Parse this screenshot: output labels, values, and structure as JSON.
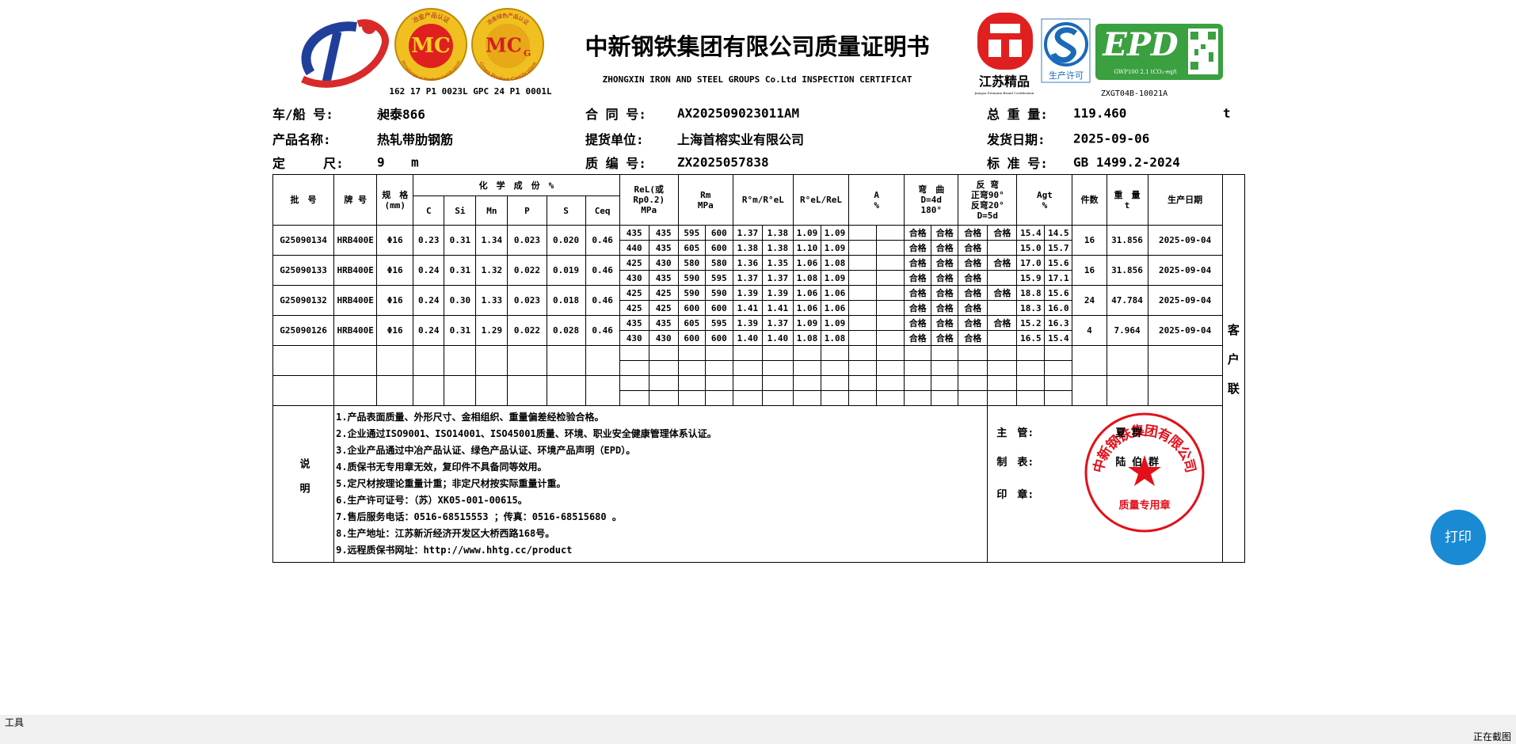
{
  "header": {
    "title": "中新钢铁集团有限公司质量证明书",
    "subtitle": "ZHONGXIN IRON AND STEEL  GROUPS Co.Ltd INSPECTION CERTIFICAT",
    "cert_codes": "162 17 P1 0023L  GPC 24 P1 0001L",
    "doc_code": "ZXGT04B-10021A",
    "logos": {
      "mc": "MC",
      "mc_ring_top": "冶金产品认证",
      "mc_ring_bottom": "Metallurgical Product Certification",
      "mcg": "MC",
      "mcg_sub": "G",
      "mcg_ring_top": "冶金绿色产品认证",
      "mcg_ring_bottom": "Green Product Certification",
      "jiangsu": "江苏精品",
      "jiangsu_en": "Jiangsu Premium Brand Certification",
      "license": "生产许可",
      "epd": "EPD",
      "epd_note": "GWP100 2.1 tCO₂-eq/t"
    }
  },
  "info": [
    {
      "label": "车/船 号:",
      "value": "昶泰866"
    },
    {
      "label": "合 同 号:",
      "value": "AX202509023011AM"
    },
    {
      "label": "总 重 量:",
      "value": "119.460",
      "unit": "t"
    },
    {
      "label": "产品名称:",
      "value": "热轧带肋钢筋"
    },
    {
      "label": "提货单位:",
      "value": "上海首榕实业有限公司"
    },
    {
      "label": "发货日期:",
      "value": "2025-09-06"
    },
    {
      "label": "定     尺:",
      "value": "9",
      "unit": "m"
    },
    {
      "label": "质 编 号:",
      "value": "ZX2025057838"
    },
    {
      "label": "标 准 号:",
      "value": "GB 1499.2-2024"
    }
  ],
  "table": {
    "head": [
      [
        "批　号"
      ],
      [
        "牌 号"
      ],
      [
        "规　格",
        "(mm)"
      ],
      [
        "化　学　成　份　%"
      ],
      [
        "ReL(或",
        "Rp0.2)",
        "MPa"
      ],
      [
        "Rm",
        "MPa"
      ],
      [
        "R°m/R°eL"
      ],
      [
        "R°eL/ReL"
      ],
      [
        "A",
        "%"
      ],
      [
        "弯　曲",
        "D=4d",
        "180°"
      ],
      [
        "反 弯",
        "正弯90°",
        "反弯20°",
        "D=5d"
      ],
      [
        "Agt",
        "%"
      ],
      [
        "件数"
      ],
      [
        "重　量",
        "t"
      ],
      [
        "生产日期"
      ]
    ],
    "chem_head": [
      "C",
      "Si",
      "Mn",
      "P",
      "S",
      "Ceq"
    ],
    "batches": [
      {
        "batch": "G25090134",
        "grade": "HRB400E",
        "spec": "Φ16",
        "chem": [
          "0.23",
          "0.31",
          "1.34",
          "0.023",
          "0.020",
          "0.46"
        ],
        "tests": [
          [
            "435",
            "435",
            "595",
            "600",
            "1.37",
            "1.38",
            "1.09",
            "1.09",
            null,
            null,
            "合格",
            "合格",
            "合格",
            "合格",
            "15.4",
            "14.5"
          ],
          [
            "440",
            "435",
            "605",
            "600",
            "1.38",
            "1.38",
            "1.10",
            "1.09",
            null,
            null,
            "合格",
            "合格",
            "合格",
            null,
            "15.0",
            "15.7"
          ]
        ],
        "pieces": "16",
        "weight": "31.856",
        "date": "2025-09-04"
      },
      {
        "batch": "G25090133",
        "grade": "HRB400E",
        "spec": "Φ16",
        "chem": [
          "0.24",
          "0.31",
          "1.32",
          "0.022",
          "0.019",
          "0.46"
        ],
        "tests": [
          [
            "425",
            "430",
            "580",
            "580",
            "1.36",
            "1.35",
            "1.06",
            "1.08",
            null,
            null,
            "合格",
            "合格",
            "合格",
            "合格",
            "17.0",
            "15.6"
          ],
          [
            "430",
            "435",
            "590",
            "595",
            "1.37",
            "1.37",
            "1.08",
            "1.09",
            null,
            null,
            "合格",
            "合格",
            "合格",
            null,
            "15.9",
            "17.1"
          ]
        ],
        "pieces": "16",
        "weight": "31.856",
        "date": "2025-09-04"
      },
      {
        "batch": "G25090132",
        "grade": "HRB400E",
        "spec": "Φ16",
        "chem": [
          "0.24",
          "0.30",
          "1.33",
          "0.023",
          "0.018",
          "0.46"
        ],
        "tests": [
          [
            "425",
            "425",
            "590",
            "590",
            "1.39",
            "1.39",
            "1.06",
            "1.06",
            null,
            null,
            "合格",
            "合格",
            "合格",
            "合格",
            "18.8",
            "15.6"
          ],
          [
            "425",
            "425",
            "600",
            "600",
            "1.41",
            "1.41",
            "1.06",
            "1.06",
            null,
            null,
            "合格",
            "合格",
            "合格",
            null,
            "18.3",
            "16.0"
          ]
        ],
        "pieces": "24",
        "weight": "47.784",
        "date": "2025-09-04"
      },
      {
        "batch": "G25090126",
        "grade": "HRB400E",
        "spec": "Φ16",
        "chem": [
          "0.24",
          "0.31",
          "1.29",
          "0.022",
          "0.028",
          "0.46"
        ],
        "tests": [
          [
            "435",
            "435",
            "605",
            "595",
            "1.39",
            "1.37",
            "1.09",
            "1.09",
            null,
            null,
            "合格",
            "合格",
            "合格",
            "合格",
            "15.2",
            "16.3"
          ],
          [
            "430",
            "430",
            "600",
            "600",
            "1.40",
            "1.40",
            "1.08",
            "1.08",
            null,
            null,
            "合格",
            "合格",
            "合格",
            null,
            "16.5",
            "15.4"
          ]
        ],
        "pieces": "4",
        "weight": "7.964",
        "date": "2025-09-04"
      }
    ]
  },
  "notes": {
    "label": "说明",
    "lines": [
      "1.产品表面质量、外形尺寸、金相组织、重量偏差经检验合格。",
      "2.企业通过ISO9001、ISO14001、ISO45001质量、环境、职业安全健康管理体系认证。",
      "3.企业产品通过中冶产品认证、绿色产品认证、环境产品声明（EPD）。",
      "4.质保书无专用章无效，复印件不具备同等效用。",
      "5.定尺材按理论重量计重；非定尺材按实际重量计重。",
      "6.生产许可证号：（苏）XK05-001-00615。",
      "7.售后服务电话：0516-68515553 ；传真：0516-68515680 。",
      "8.生产地址：江苏新沂经济开发区大桥西路168号。",
      "9.远程质保书网址：http://www.hhtg.cc/product"
    ]
  },
  "signatures": [
    {
      "label": "主　管:",
      "name": "夏 群"
    },
    {
      "label": "制　表:",
      "name": "陆 伯 群"
    },
    {
      "label": "印　章:"
    }
  ],
  "stamp": {
    "ring": "中新钢铁集团有限公司",
    "center": "质量专用章"
  },
  "side_label": "客户联",
  "print_button": "打印",
  "toolbar": "工具",
  "status": "正在截图"
}
